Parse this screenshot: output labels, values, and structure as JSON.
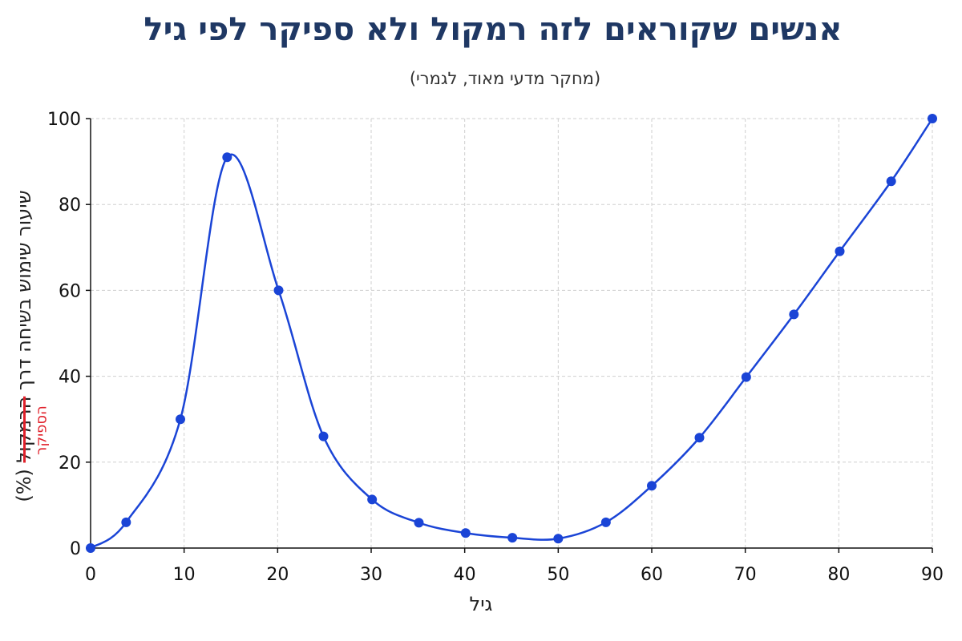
{
  "chart_data": {
    "type": "line",
    "title": "אנשים שקוראים לזה רמקול ולא ספיקר לפי גיל",
    "subtitle": "(מחקר מדעי מאוד, לגמרי)",
    "xlabel": "גיל",
    "ylabel": {
      "prefix": "שיעור שימוש בשיחה דרך ",
      "struck": "הרמקול",
      "suffix": " (%)",
      "correction": "הספיקר"
    },
    "xlim": [
      0,
      90
    ],
    "ylim": [
      0,
      100
    ],
    "xticks": [
      0,
      10,
      20,
      30,
      40,
      50,
      60,
      70,
      80,
      90
    ],
    "yticks": [
      0,
      20,
      40,
      60,
      80,
      100
    ],
    "grid": true,
    "series": [
      {
        "color": "#1a44d6",
        "x": [
          0,
          3.8,
          9.6,
          14.6,
          20.1,
          24.9,
          30.1,
          35.1,
          40.1,
          45.1,
          50.0,
          55.1,
          60.0,
          65.1,
          70.1,
          75.2,
          80.1,
          85.6,
          90.0
        ],
        "y": [
          0,
          6,
          30,
          91,
          60,
          26,
          11.3,
          5.9,
          3.5,
          2.4,
          2.2,
          6,
          14.5,
          25.7,
          39.8,
          54.4,
          69.1,
          85.4,
          100
        ]
      }
    ]
  }
}
